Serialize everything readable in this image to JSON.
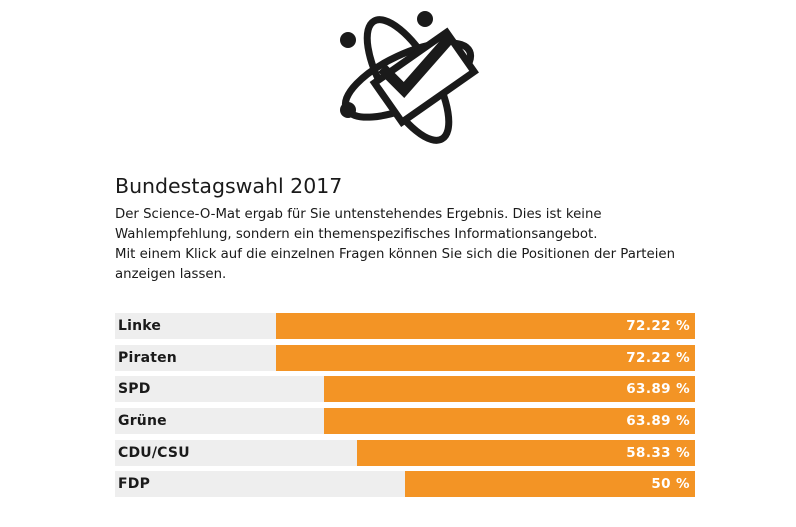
{
  "logo": {
    "icon": "atom-checkmark-icon"
  },
  "title": "Bundestagswahl 2017",
  "description": {
    "line1": "Der Science-O-Mat ergab für Sie untenstehendes Ergebnis. Dies ist keine Wahlempfehlung, sondern ein themenspezifisches Informationsangebot.",
    "line2": "Mit einem Klick auf die einzelnen Fragen können Sie sich die Positionen der Parteien anzeigen lassen."
  },
  "results": [
    {
      "party": "Linke",
      "percent": 72.22,
      "label": "72.22 %"
    },
    {
      "party": "Piraten",
      "percent": 72.22,
      "label": "72.22 %"
    },
    {
      "party": "SPD",
      "percent": 63.89,
      "label": "63.89 %"
    },
    {
      "party": "Grüne",
      "percent": 63.89,
      "label": "63.89 %"
    },
    {
      "party": "CDU/CSU",
      "percent": 58.33,
      "label": "58.33 %"
    },
    {
      "party": "FDP",
      "percent": 50,
      "label": "50 %"
    }
  ],
  "colors": {
    "bar": "#f39425",
    "track": "#eeeeee",
    "text": "#1a1a1a"
  }
}
